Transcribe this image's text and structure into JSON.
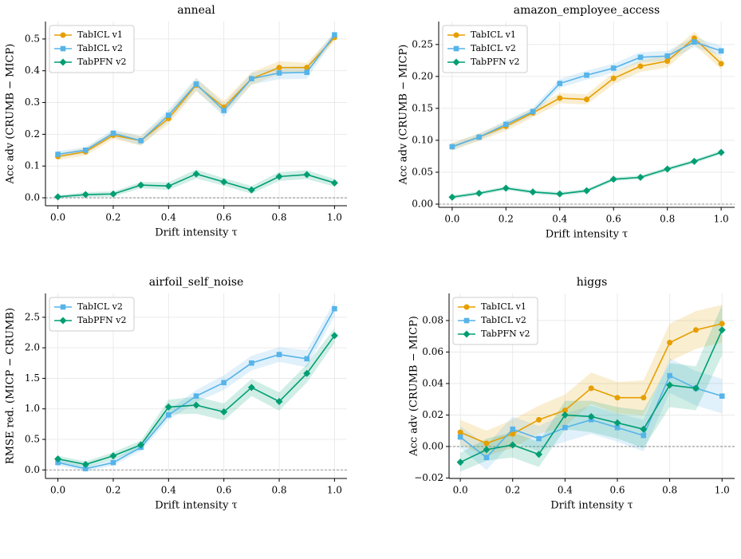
{
  "chart_data": [
    {
      "type": "line",
      "title": "anneal",
      "xlabel": "Drift intensity τ",
      "ylabel": "Acc adv (CRUMB − MICP)",
      "x": [
        0.0,
        0.1,
        0.2,
        0.3,
        0.4,
        0.5,
        0.6,
        0.7,
        0.8,
        0.9,
        1.0
      ],
      "xlim": [
        -0.045,
        1.045
      ],
      "ylim": [
        -0.025,
        0.555
      ],
      "xticks": [
        {
          "value": 0,
          "label": "0.0"
        },
        {
          "value": 0.2,
          "label": "0.2"
        },
        {
          "value": 0.4,
          "label": "0.4"
        },
        {
          "value": 0.6,
          "label": "0.6"
        },
        {
          "value": 0.8,
          "label": "0.8"
        },
        {
          "value": 1,
          "label": "1.0"
        }
      ],
      "yticks": [
        {
          "value": 0,
          "label": "0.0"
        },
        {
          "value": 0.1,
          "label": "0.1"
        },
        {
          "value": 0.2,
          "label": "0.2"
        },
        {
          "value": 0.3,
          "label": "0.3"
        },
        {
          "value": 0.4,
          "label": "0.4"
        },
        {
          "value": 0.5,
          "label": "0.5"
        }
      ],
      "grid": true,
      "reference_line": 0,
      "legend": "upper left",
      "series": [
        {
          "name": "TabICL v1",
          "color": "#E69F00",
          "marker": "circle",
          "values": [
            0.13,
            0.145,
            0.197,
            0.18,
            0.25,
            0.355,
            0.285,
            0.375,
            0.41,
            0.41,
            0.505
          ],
          "errors": [
            0.01,
            0.012,
            0.012,
            0.015,
            0.018,
            0.02,
            0.02,
            0.02,
            0.02,
            0.015,
            0.012
          ]
        },
        {
          "name": "TabICL v2",
          "color": "#56B4E9",
          "marker": "square",
          "values": [
            0.137,
            0.15,
            0.203,
            0.18,
            0.26,
            0.358,
            0.275,
            0.375,
            0.393,
            0.395,
            0.513
          ],
          "errors": [
            0.01,
            0.01,
            0.012,
            0.015,
            0.018,
            0.02,
            0.02,
            0.018,
            0.02,
            0.02,
            0.012
          ]
        },
        {
          "name": "TabPFN v2",
          "color": "#009E73",
          "marker": "diamond",
          "values": [
            0.003,
            0.01,
            0.012,
            0.04,
            0.037,
            0.075,
            0.05,
            0.025,
            0.067,
            0.073,
            0.047
          ],
          "errors": [
            0.005,
            0.008,
            0.008,
            0.01,
            0.012,
            0.014,
            0.012,
            0.012,
            0.014,
            0.014,
            0.012
          ]
        }
      ]
    },
    {
      "type": "line",
      "title": "amazon_employee_access",
      "xlabel": "Drift intensity τ",
      "ylabel": "Acc adv (CRUMB − MICP)",
      "x": [
        0.0,
        0.1,
        0.2,
        0.3,
        0.4,
        0.5,
        0.6,
        0.7,
        0.8,
        0.9,
        1.0
      ],
      "xlim": [
        -0.05,
        1.05
      ],
      "ylim": [
        -0.005,
        0.286
      ],
      "xticks": [
        {
          "value": 0,
          "label": "0.0"
        },
        {
          "value": 0.2,
          "label": "0.2"
        },
        {
          "value": 0.4,
          "label": "0.4"
        },
        {
          "value": 0.6,
          "label": "0.6"
        },
        {
          "value": 0.8,
          "label": "0.8"
        },
        {
          "value": 1,
          "label": "1.0"
        }
      ],
      "yticks": [
        {
          "value": 0,
          "label": "0.00"
        },
        {
          "value": 0.05,
          "label": "0.05"
        },
        {
          "value": 0.1,
          "label": "0.10"
        },
        {
          "value": 0.15,
          "label": "0.15"
        },
        {
          "value": 0.2,
          "label": "0.20"
        },
        {
          "value": 0.25,
          "label": "0.25"
        }
      ],
      "grid": true,
      "reference_line": 0,
      "legend": "upper left",
      "series": [
        {
          "name": "TabICL v1",
          "color": "#E69F00",
          "marker": "circle",
          "values": [
            0.09,
            0.105,
            0.122,
            0.143,
            0.166,
            0.164,
            0.197,
            0.216,
            0.224,
            0.26,
            0.22
          ],
          "errors": [
            0.006,
            0.006,
            0.007,
            0.007,
            0.008,
            0.008,
            0.009,
            0.009,
            0.01,
            0.01,
            0.009
          ]
        },
        {
          "name": "TabICL v2",
          "color": "#56B4E9",
          "marker": "square",
          "values": [
            0.09,
            0.105,
            0.125,
            0.145,
            0.189,
            0.202,
            0.213,
            0.23,
            0.232,
            0.254,
            0.24
          ],
          "errors": [
            0.005,
            0.005,
            0.006,
            0.006,
            0.007,
            0.007,
            0.007,
            0.008,
            0.008,
            0.008,
            0.008
          ]
        },
        {
          "name": "TabPFN v2",
          "color": "#009E73",
          "marker": "diamond",
          "values": [
            0.011,
            0.017,
            0.025,
            0.019,
            0.016,
            0.021,
            0.039,
            0.042,
            0.055,
            0.067,
            0.081
          ],
          "errors": [
            0.003,
            0.003,
            0.003,
            0.003,
            0.003,
            0.003,
            0.003,
            0.003,
            0.003,
            0.003,
            0.003
          ]
        }
      ]
    },
    {
      "type": "line",
      "title": "airfoil_self_noise",
      "xlabel": "Drift intensity τ",
      "ylabel": "RMSE red. (MICP − CRUMB)",
      "x": [
        0.0,
        0.1,
        0.2,
        0.3,
        0.4,
        0.5,
        0.6,
        0.7,
        0.8,
        0.9,
        1.0
      ],
      "xlim": [
        -0.045,
        1.045
      ],
      "ylim": [
        -0.14,
        2.89
      ],
      "xticks": [
        {
          "value": 0,
          "label": "0.0"
        },
        {
          "value": 0.2,
          "label": "0.2"
        },
        {
          "value": 0.4,
          "label": "0.4"
        },
        {
          "value": 0.6,
          "label": "0.6"
        },
        {
          "value": 0.8,
          "label": "0.8"
        },
        {
          "value": 1,
          "label": "1.0"
        }
      ],
      "yticks": [
        {
          "value": 0,
          "label": "0.0"
        },
        0.5,
        {
          "value": 1,
          "label": "1.0"
        },
        1.5,
        {
          "value": 2,
          "label": "2.0"
        },
        2.5
      ],
      "grid": true,
      "reference_line": 0,
      "legend": "upper left",
      "series": [
        {
          "name": "TabICL v2",
          "color": "#56B4E9",
          "marker": "square",
          "values": [
            0.12,
            0.02,
            0.12,
            0.37,
            0.9,
            1.21,
            1.43,
            1.75,
            1.89,
            1.82,
            2.64
          ],
          "errors": [
            0.05,
            0.04,
            0.05,
            0.06,
            0.08,
            0.1,
            0.12,
            0.12,
            0.12,
            0.14,
            0.12
          ]
        },
        {
          "name": "TabPFN v2",
          "color": "#009E73",
          "marker": "diamond",
          "values": [
            0.18,
            0.09,
            0.23,
            0.41,
            1.03,
            1.06,
            0.95,
            1.35,
            1.12,
            1.58,
            2.2
          ],
          "errors": [
            0.05,
            0.05,
            0.06,
            0.07,
            0.12,
            0.14,
            0.14,
            0.14,
            0.15,
            0.15,
            0.12
          ]
        }
      ]
    },
    {
      "type": "line",
      "title": "higgs",
      "xlabel": "Drift intensity τ",
      "ylabel": "Acc adv (CRUMB − MICP)",
      "x": [
        0.0,
        0.1,
        0.2,
        0.3,
        0.4,
        0.5,
        0.6,
        0.7,
        0.8,
        0.9,
        1.0
      ],
      "xlim": [
        -0.043,
        1.048
      ],
      "ylim": [
        -0.0203,
        0.0972
      ],
      "xticks": [
        {
          "value": 0,
          "label": "0.0"
        },
        {
          "value": 0.2,
          "label": "0.2"
        },
        {
          "value": 0.4,
          "label": "0.4"
        },
        {
          "value": 0.6,
          "label": "0.6"
        },
        {
          "value": 0.8,
          "label": "0.8"
        },
        {
          "value": 1,
          "label": "1.0"
        }
      ],
      "yticks": [
        {
          "value": -0.02,
          "label": "−0.02"
        },
        {
          "value": 0,
          "label": "0.00"
        },
        {
          "value": 0.02,
          "label": "0.02"
        },
        {
          "value": 0.04,
          "label": "0.04"
        },
        {
          "value": 0.06,
          "label": "0.06"
        },
        {
          "value": 0.08,
          "label": "0.08"
        }
      ],
      "grid": true,
      "reference_line": 0,
      "legend": "upper left",
      "series": [
        {
          "name": "TabICL v1",
          "color": "#E69F00",
          "marker": "circle",
          "values": [
            0.009,
            0.002,
            0.008,
            0.017,
            0.023,
            0.037,
            0.031,
            0.031,
            0.066,
            0.074,
            0.078
          ],
          "errors": [
            0.008,
            0.008,
            0.009,
            0.009,
            0.01,
            0.01,
            0.01,
            0.011,
            0.012,
            0.012,
            0.012
          ]
        },
        {
          "name": "TabICL v2",
          "color": "#56B4E9",
          "marker": "square",
          "values": [
            0.006,
            -0.007,
            0.011,
            0.005,
            0.012,
            0.017,
            0.012,
            0.007,
            0.045,
            0.037,
            0.032
          ],
          "errors": [
            0.007,
            0.008,
            0.008,
            0.008,
            0.009,
            0.009,
            0.009,
            0.01,
            0.011,
            0.011,
            0.011
          ]
        },
        {
          "name": "TabPFN v2",
          "color": "#009E73",
          "marker": "diamond",
          "values": [
            -0.01,
            -0.002,
            0.001,
            -0.005,
            0.02,
            0.019,
            0.015,
            0.011,
            0.039,
            0.037,
            0.074
          ],
          "errors": [
            0.006,
            0.007,
            0.008,
            0.008,
            0.009,
            0.01,
            0.01,
            0.012,
            0.014,
            0.014,
            0.016
          ]
        }
      ]
    }
  ]
}
